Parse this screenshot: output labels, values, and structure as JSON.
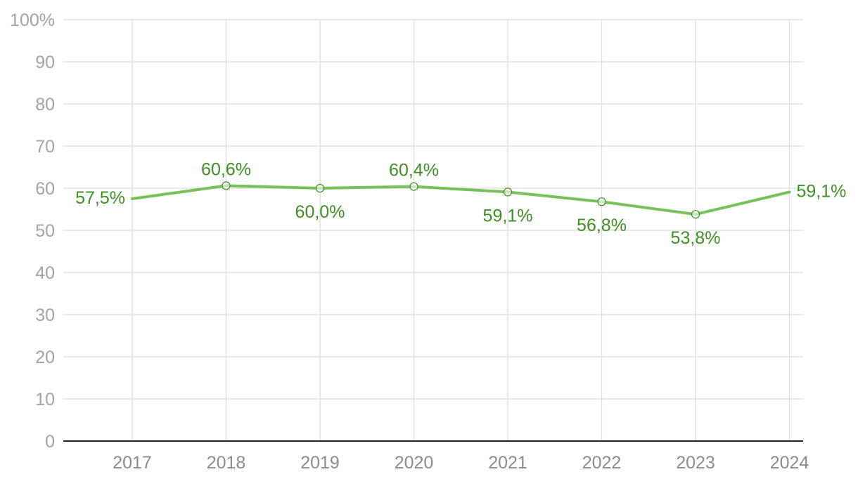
{
  "colors": {
    "line": "#77c05c",
    "label": "#3f8f24",
    "grid": "#e2e2e2",
    "axis": "#222222",
    "ytick": "#a3a3a3",
    "xtick": "#8c8c8c"
  },
  "chart_data": {
    "type": "line",
    "x": [
      "2017",
      "2018",
      "2019",
      "2020",
      "2021",
      "2022",
      "2023",
      "2024"
    ],
    "values": [
      57.5,
      60.6,
      60.0,
      60.4,
      59.1,
      56.8,
      53.8,
      59.1
    ],
    "data_labels": [
      "57,5%",
      "60,6%",
      "60,0%",
      "60,4%",
      "59,1%",
      "56,8%",
      "53,8%",
      "59,1%"
    ],
    "yticks": [
      0,
      10,
      20,
      30,
      40,
      50,
      60,
      70,
      80,
      90,
      100
    ],
    "ytick_labels": [
      "0",
      "10",
      "20",
      "30",
      "40",
      "50",
      "60",
      "70",
      "80",
      "90",
      "100%"
    ],
    "ylim": [
      0,
      100
    ],
    "grid": true,
    "legend": "none",
    "markers": "hollow-circle"
  }
}
